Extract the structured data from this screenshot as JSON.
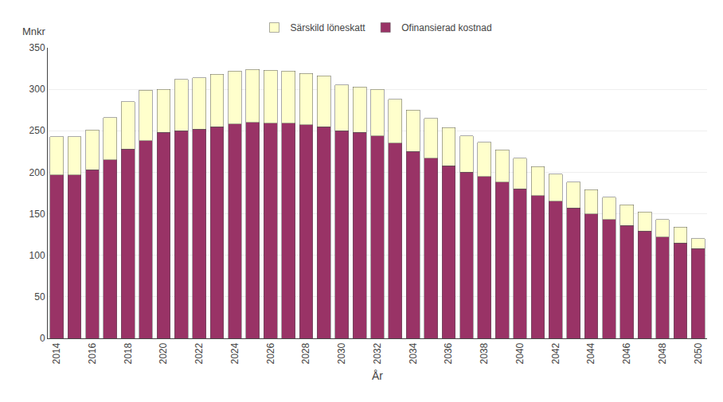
{
  "chart_data": {
    "type": "bar",
    "stacked": true,
    "xlabel": "År",
    "ylabel": "Mnkr",
    "categories": [
      "2014",
      null,
      "2016",
      null,
      "2018",
      null,
      "2020",
      null,
      "2022",
      null,
      "2024",
      null,
      "2026",
      null,
      "2028",
      null,
      "2030",
      null,
      "2032",
      null,
      "2034",
      null,
      "2036",
      null,
      "2038",
      null,
      "2040",
      null,
      "2042",
      null,
      "2044",
      null,
      "2046",
      null,
      "2048",
      null,
      "2050"
    ],
    "series": [
      {
        "name": "Ofinansierad kostnad",
        "color": "#993366",
        "values": [
          197,
          197,
          203,
          215,
          228,
          238,
          248,
          250,
          252,
          255,
          258,
          260,
          259,
          259,
          257,
          255,
          250,
          248,
          244,
          235,
          225,
          217,
          208,
          200,
          195,
          188,
          180,
          172,
          165,
          157,
          150,
          143,
          136,
          129,
          122,
          115,
          108
        ]
      },
      {
        "name": "Särskild löneskatt",
        "color": "#ffffcc",
        "values": [
          46,
          46,
          48,
          51,
          57,
          61,
          52,
          62,
          62,
          63,
          64,
          64,
          64,
          63,
          62,
          61,
          55,
          55,
          56,
          53,
          50,
          48,
          46,
          44,
          41,
          39,
          37,
          35,
          33,
          31,
          29,
          27,
          25,
          23,
          21,
          19,
          12
        ]
      }
    ],
    "ylim": [
      0,
      350
    ],
    "yticks": [
      0,
      50,
      100,
      150,
      200,
      250,
      300,
      350
    ],
    "grid": true,
    "legend": "top"
  }
}
